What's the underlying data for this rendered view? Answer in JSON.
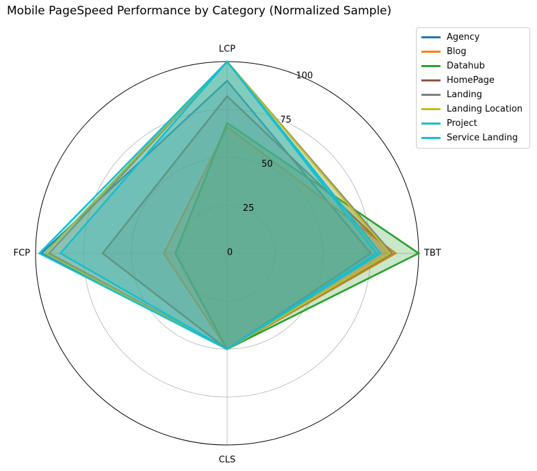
{
  "chart_data": {
    "type": "radar",
    "title": "Mobile PageSpeed Performance by Category (Normalized Sample)",
    "axes": [
      "LCP",
      "TBT",
      "CLS",
      "FCP"
    ],
    "rlim": [
      0,
      100
    ],
    "rticks": [
      0,
      25,
      50,
      75,
      100
    ],
    "grid": true,
    "legend_position": "outside-top-right",
    "series": [
      {
        "name": "Agency",
        "color": "#1f77b4",
        "values": [
          90,
          75,
          50,
          97
        ]
      },
      {
        "name": "Blog",
        "color": "#ff7f0e",
        "values": [
          66,
          88,
          50,
          33
        ]
      },
      {
        "name": "Datahub",
        "color": "#2ca02c",
        "values": [
          68,
          100,
          50,
          27
        ]
      },
      {
        "name": "HomePage",
        "color": "#8c564b",
        "values": [
          82,
          86,
          50,
          65
        ]
      },
      {
        "name": "Landing",
        "color": "#7f7f7f",
        "values": [
          100,
          86,
          50,
          93
        ]
      },
      {
        "name": "Landing Location",
        "color": "#bcbd22",
        "values": [
          100,
          85,
          50,
          95
        ]
      },
      {
        "name": "Project",
        "color": "#17becf",
        "values": [
          100,
          78,
          50,
          87
        ]
      },
      {
        "name": "Service Landing",
        "color": "#17becf",
        "values": [
          100,
          80,
          50,
          98
        ]
      }
    ]
  }
}
